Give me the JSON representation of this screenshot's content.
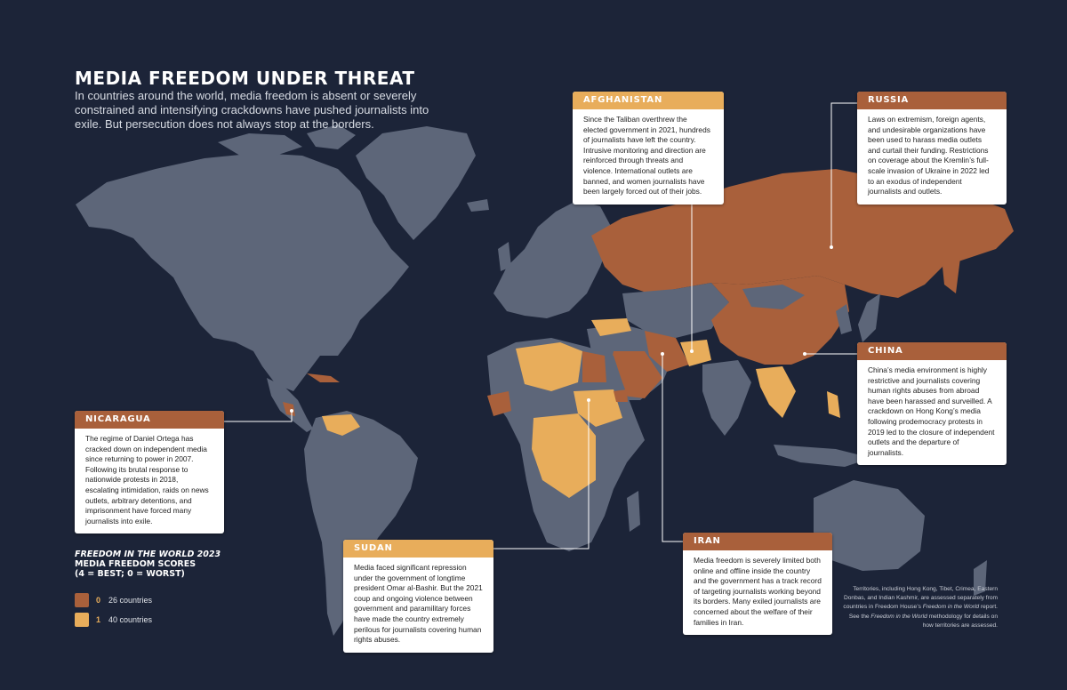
{
  "title": "MEDIA FREEDOM UNDER THREAT",
  "subtitle": "In countries around the world, media freedom is absent or severely constrained and intensifying crackdowns have pushed journalists into exile. But persecution does not always stop at the borders.",
  "colors": {
    "background": "#1c2438",
    "land": "#5d6679",
    "score0": "#a9603b",
    "score1": "#e8ad5b",
    "card": "#ffffff"
  },
  "cards": {
    "afghanistan": {
      "header": "AFGHANISTAN",
      "body": "Since the Taliban overthrew the elected government in 2021, hundreds of journalists have left the country. Intrusive monitoring and direction are reinforced through threats and violence. International outlets are banned, and women journalists have been largely forced out of their jobs."
    },
    "russia": {
      "header": "RUSSIA",
      "body": "Laws on extremism, foreign agents, and undesirable organizations have been used to harass media outlets and curtail their funding. Restrictions on coverage about the Kremlin’s full-scale invasion of Ukraine in 2022 led to an exodus of independent journalists and outlets."
    },
    "china": {
      "header": "CHINA",
      "body": "China’s media environment is highly restrictive and journalists covering human rights abuses from abroad have been harassed and surveilled. A crackdown on Hong Kong’s media following prodemocracy protests in 2019 led to the closure of independent outlets and the departure of journalists."
    },
    "nicaragua": {
      "header": "NICARAGUA",
      "body": "The regime of Daniel Ortega has cracked down on independent media since returning to power in 2007. Following its brutal response to nationwide protests in 2018, escalating intimidation, raids on news outlets, arbitrary detentions, and imprisonment have forced many journalists into exile."
    },
    "sudan": {
      "header": "SUDAN",
      "body": "Media faced significant repression under the government of longtime president Omar al-Bashir. But the 2021 coup and ongoing violence between government and paramilitary forces have made the country extremely perilous for journalists covering human rights abuses."
    },
    "iran": {
      "header": "IRAN",
      "body": "Media freedom is severely limited both online and offline inside the country and the government has a track record of targeting journalists working beyond its borders. Many exiled journalists are concerned about the welfare of their families in Iran."
    }
  },
  "legend": {
    "title_italic": "FREEDOM IN THE WORLD 2023",
    "title_line2": "MEDIA FREEDOM SCORES",
    "title_line3": "(4 = BEST; 0 = WORST)",
    "items": [
      {
        "score": "0",
        "label": "26 countries",
        "color": "#a9603b"
      },
      {
        "score": "1",
        "label": "40 countries",
        "color": "#e8ad5b"
      }
    ]
  },
  "footnote": {
    "part1": "Territories, including Hong Kong, Tibet, Crimea, Eastern Donbas, and Indian Kashmir, are assessed separately from countries in Freedom House’s ",
    "italic1": "Freedom in the World",
    "part2": " report. See the ",
    "italic2": "Freedom in the World",
    "part3": " methodology for details on how territories are assessed."
  }
}
